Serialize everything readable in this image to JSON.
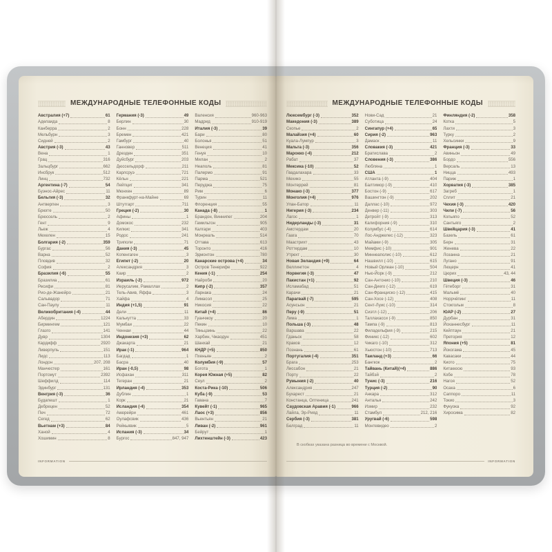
{
  "header": {
    "title": "МЕЖДУНАРОДНЫЕ ТЕЛЕФОННЫЕ КОДЫ"
  },
  "footer": {
    "label": "INFORMATION"
  },
  "right_page_footnote": "В скобках указана разница во времени с Москвой.",
  "colors": {
    "page": "#f3eee0",
    "cover": "#b2b5b7",
    "text": "#6e675e",
    "bold_text": "#494239"
  },
  "left_page": {
    "columns": [
      [
        [
          "Австралия (+7)",
          "61",
          1
        ],
        [
          "Аделаида",
          "8"
        ],
        [
          "Канберра",
          "2"
        ],
        [
          "Мельбурн",
          "3"
        ],
        [
          "Сидней",
          "2"
        ],
        [
          "Австрия (-3)",
          "43",
          1
        ],
        [
          "Вена",
          "1"
        ],
        [
          "Грац",
          "316"
        ],
        [
          "Зальцбург",
          "662"
        ],
        [
          "Инсбрук",
          "512"
        ],
        [
          "Линц",
          "732"
        ],
        [
          "Аргентина (-7)",
          "54",
          1
        ],
        [
          "Буэнос-Айрес",
          "11"
        ],
        [
          "Бельгия (-3)",
          "32",
          1
        ],
        [
          "Антверпен",
          "3"
        ],
        [
          "Брюгге",
          "50"
        ],
        [
          "Брюссель",
          "2"
        ],
        [
          "Гент",
          "9"
        ],
        [
          "Льеж",
          "4"
        ],
        [
          "Мехелен",
          "15"
        ],
        [
          "Болгария (-2)",
          "359",
          1
        ],
        [
          "Бургас",
          "56"
        ],
        [
          "Варна",
          "52"
        ],
        [
          "Пловдив",
          "32"
        ],
        [
          "София",
          "2"
        ],
        [
          "Бразилия (-6)",
          "55",
          1
        ],
        [
          "Бразилиа",
          "61"
        ],
        [
          "Ресифи",
          "81"
        ],
        [
          "Рио-де-Жанейро",
          "21"
        ],
        [
          "Сальвадор",
          "71"
        ],
        [
          "Сан-Паулу",
          "11"
        ],
        [
          "Великобритания (-4)",
          "44",
          1
        ],
        [
          "Абердин",
          "1224"
        ],
        [
          "Бирмингем",
          "121"
        ],
        [
          "Глазго",
          "141"
        ],
        [
          "Дувр",
          "1304"
        ],
        [
          "Кардифф",
          "2920"
        ],
        [
          "Ливерпуль",
          "151"
        ],
        [
          "Лидс",
          "113"
        ],
        [
          "Лондон",
          "207, 208"
        ],
        [
          "Манчестер",
          "161"
        ],
        [
          "Портсмут",
          "2392"
        ],
        [
          "Шеффилд",
          "114"
        ],
        [
          "Эдинбург",
          "131"
        ],
        [
          "Венгрия (-3)",
          "36",
          1
        ],
        [
          "Будапешт",
          "1"
        ],
        [
          "Дебрецен",
          "52"
        ],
        [
          "Печ",
          "72"
        ],
        [
          "Сегед",
          "62"
        ],
        [
          "Вьетнам (+3)",
          "84",
          1
        ],
        [
          "Ханой",
          "4"
        ],
        [
          "Хошимин",
          "8"
        ]
      ],
      [
        [
          "Германия (-3)",
          "49",
          1
        ],
        [
          "Берлин",
          "30"
        ],
        [
          "Бонн",
          "228"
        ],
        [
          "Бремен",
          "421"
        ],
        [
          "Гамбург",
          "40"
        ],
        [
          "Ганновер",
          "511"
        ],
        [
          "Дрезден",
          "351"
        ],
        [
          "Дуйсбург",
          "203"
        ],
        [
          "Дюссельдорф",
          "211"
        ],
        [
          "Карлсруэ",
          "721"
        ],
        [
          "Кёльн",
          "221"
        ],
        [
          "Лейпциг",
          "341"
        ],
        [
          "Мюнхен",
          "89"
        ],
        [
          "Франкфурт-на-Майне",
          "69"
        ],
        [
          "Штутгарт",
          "711"
        ],
        [
          "Греция (-2)",
          "30",
          1
        ],
        [
          "Афины",
          "1"
        ],
        [
          "Домокос",
          "232"
        ],
        [
          "Килкис",
          "341"
        ],
        [
          "Родос",
          "241"
        ],
        [
          "Триполи",
          "71"
        ],
        [
          "Дания (-3)",
          "45",
          1
        ],
        [
          "Копенгаген",
          "3"
        ],
        [
          "Египет (-2)",
          "20",
          1
        ],
        [
          "Александрия",
          "3"
        ],
        [
          "Каир",
          "2"
        ],
        [
          "Израиль (-2)",
          "972",
          1
        ],
        [
          "Иерусалим, Рамаллах",
          "2"
        ],
        [
          "Тель-Авив, Яффа",
          "3"
        ],
        [
          "Хайфа",
          "4"
        ],
        [
          "Индия (+1,5)",
          "91",
          1
        ],
        [
          "Дели",
          "11"
        ],
        [
          "Калькутта",
          "33"
        ],
        [
          "Мумбаи",
          "22"
        ],
        [
          "Ченнаи",
          "44"
        ],
        [
          "Индонезия (+3)",
          "62",
          1
        ],
        [
          "Джакарта",
          "21"
        ],
        [
          "Ирак (-1)",
          "964",
          1
        ],
        [
          "Багдад",
          "1"
        ],
        [
          "Басра",
          "40"
        ],
        [
          "Иран (-0,5)",
          "98",
          1
        ],
        [
          "Исфахан",
          "311"
        ],
        [
          "Тегеран",
          "21"
        ],
        [
          "Ирландия (-4)",
          "353",
          1
        ],
        [
          "Дублин",
          "1"
        ],
        [
          "Корк",
          "21"
        ],
        [
          "Исландия (-4)",
          "354",
          1
        ],
        [
          "Акюрейри",
          "461"
        ],
        [
          "Оулафсвик",
          "436"
        ],
        [
          "Рейкьявик",
          "5"
        ],
        [
          "Испания (-3)",
          "34",
          1
        ],
        [
          "Бургос",
          "847, 947"
        ]
      ],
      [
        [
          "Валенсия",
          "960-963"
        ],
        [
          "Мадрид",
          "910-919"
        ],
        [
          "Италия (-3)",
          "39",
          1
        ],
        [
          "Бари",
          "80"
        ],
        [
          "Болонья",
          "51"
        ],
        [
          "Венеция",
          "41"
        ],
        [
          "Генуя",
          "10"
        ],
        [
          "Милан",
          "2"
        ],
        [
          "Неаполь",
          "81"
        ],
        [
          "Палермо",
          "91"
        ],
        [
          "Парма",
          "521"
        ],
        [
          "Перуджа",
          "75"
        ],
        [
          "Рим",
          "6"
        ],
        [
          "Турин",
          "11"
        ],
        [
          "Флоренция",
          "55"
        ],
        [
          "Канада (-8)",
          "1",
          1
        ],
        [
          "Брандон, Виннипег",
          "204"
        ],
        [
          "Гамильтон",
          "905"
        ],
        [
          "Калгари",
          "403"
        ],
        [
          "Монреаль",
          "514"
        ],
        [
          "Оттава",
          "613"
        ],
        [
          "Торонто",
          "416"
        ],
        [
          "Эдмонтон",
          "780"
        ],
        [
          "Канарские острова (+4)",
          "34",
          1
        ],
        [
          "Остров Тенерифе",
          "922"
        ],
        [
          "Кения (-1)",
          "254",
          1
        ],
        [
          "Найроби",
          "20"
        ],
        [
          "Кипр (-2)",
          "357",
          1
        ],
        [
          "Ларнака",
          "24"
        ],
        [
          "Лимасол",
          "25"
        ],
        [
          "Никосия",
          "22"
        ],
        [
          "Китай (+4)",
          "86",
          1
        ],
        [
          "Гуанчжоу",
          "20"
        ],
        [
          "Пекин",
          "10"
        ],
        [
          "Тяньцзинь",
          "22"
        ],
        [
          "Харбин, Чжаодун",
          "451"
        ],
        [
          "Шанхай",
          "21"
        ],
        [
          "КНДР (+5)",
          "850",
          1
        ],
        [
          "Пхеньян",
          "2"
        ],
        [
          "Колумбия (-9)",
          "57",
          1
        ],
        [
          "Богота",
          "1"
        ],
        [
          "Корея Южная (+5)",
          "82",
          1
        ],
        [
          "Сеул",
          "2"
        ],
        [
          "Коста-Рика (-10)",
          "506",
          1
        ],
        [
          "Куба (-9)",
          "53",
          1
        ],
        [
          "Гавана",
          "7"
        ],
        [
          "Кувейт (-1)",
          "965",
          1
        ],
        [
          "Лаос (+3)",
          "856",
          1
        ],
        [
          "Вьентьян",
          "21"
        ],
        [
          "Ливан (-2)",
          "961",
          1
        ],
        [
          "Бейрут",
          "1"
        ],
        [
          "Лихтенштейн (-3)",
          "423",
          1
        ]
      ]
    ]
  },
  "right_page": {
    "columns": [
      [
        [
          "Люксембург (-3)",
          "352",
          1
        ],
        [
          "Македония (-3)",
          "389",
          1
        ],
        [
          "Скопье",
          "2"
        ],
        [
          "Малайзия (+4)",
          "60",
          1
        ],
        [
          "Куала-Лумпур",
          "3"
        ],
        [
          "Мальта (-3)",
          "356",
          1
        ],
        [
          "Марокко (-4)",
          "212",
          1
        ],
        [
          "Рабат",
          "37"
        ],
        [
          "Мексика (-10)",
          "52",
          1
        ],
        [
          "Гвадалахара",
          "33"
        ],
        [
          "Мехико",
          "55"
        ],
        [
          "Монтеррей",
          "81"
        ],
        [
          "Монако (-3)",
          "377",
          1
        ],
        [
          "Монголия (+4)",
          "976",
          1
        ],
        [
          "Улан-Батор",
          "11"
        ],
        [
          "Нигерия (-3)",
          "234",
          1
        ],
        [
          "Лагос",
          "1"
        ],
        [
          "Нидерланды (-3)",
          "31",
          1
        ],
        [
          "Амстердам",
          "20"
        ],
        [
          "Гаага",
          "70"
        ],
        [
          "Маастрихт",
          "43"
        ],
        [
          "Роттердам",
          "10"
        ],
        [
          "Утрехт",
          "30"
        ],
        [
          "Новая Зеландия (+9)",
          "64",
          1
        ],
        [
          "Веллингтон",
          "4"
        ],
        [
          "Норвегия (-3)",
          "47",
          1
        ],
        [
          "Пакистан (+1)",
          "92",
          1
        ],
        [
          "Исламабад",
          "51"
        ],
        [
          "Карачи",
          "21"
        ],
        [
          "Парагвай (-7)",
          "595",
          1
        ],
        [
          "Асунсьон",
          "21"
        ],
        [
          "Перу (-9)",
          "51",
          1
        ],
        [
          "Лима",
          "1"
        ],
        [
          "Польша (-3)",
          "48",
          1
        ],
        [
          "Варшава",
          "22"
        ],
        [
          "Гданьск",
          "58"
        ],
        [
          "Краков",
          "12"
        ],
        [
          "Познань",
          "61"
        ],
        [
          "Португалия (-4)",
          "351",
          1
        ],
        [
          "Брага",
          "253"
        ],
        [
          "Лиссабон",
          "21"
        ],
        [
          "Порту",
          "22"
        ],
        [
          "Румыния (-2)",
          "40",
          1
        ],
        [
          "Александрия",
          "247"
        ],
        [
          "Бухарест",
          "21"
        ],
        [
          "Констанца, Олтеница",
          "241"
        ],
        [
          "Саудовская Аравия (-1)",
          "966",
          1
        ],
        [
          "Лайла, Эр-Рияд",
          "11"
        ],
        [
          "Сербия (-3)",
          "381",
          1
        ],
        [
          "Белград",
          "11"
        ]
      ],
      [
        [
          "Нови-Сад",
          "21"
        ],
        [
          "Суботица",
          "24"
        ],
        [
          "Сингапур (+4)",
          "65",
          1
        ],
        [
          "Сирия (-2)",
          "963",
          1
        ],
        [
          "Дамаск",
          "11"
        ],
        [
          "Словакия (-3)",
          "421",
          1
        ],
        [
          "Братислава",
          "2"
        ],
        [
          "Словения (-3)",
          "386",
          1
        ],
        [
          "Любляна",
          "1"
        ],
        [
          "США",
          "1",
          1
        ],
        [
          "Атланта (-9)",
          "404"
        ],
        [
          "Балтимор (-9)",
          "410"
        ],
        [
          "Бостон (-9)",
          "617"
        ],
        [
          "Вашингтон (-9)",
          "202"
        ],
        [
          "Даллас (-10)",
          "972"
        ],
        [
          "Денвер (-11)",
          "303"
        ],
        [
          "Детройт (-9)",
          "313"
        ],
        [
          "Калифорния (-9)",
          "310"
        ],
        [
          "Колумбус (-4)",
          "614"
        ],
        [
          "Лос-Анджелес (-12)",
          "323"
        ],
        [
          "Майами (-9)",
          "305"
        ],
        [
          "Мемфис (-10)",
          "901"
        ],
        [
          "Миннеаполис (-10)",
          "612"
        ],
        [
          "Нашвилл (-10)",
          "615"
        ],
        [
          "Новый Орлеан (-10)",
          "504"
        ],
        [
          "Нью-Йорк (-9)",
          "212"
        ],
        [
          "Сан-Антонио (-10)",
          "210"
        ],
        [
          "Сан-Диего (-12)",
          "619"
        ],
        [
          "Сан-Франциско (-12)",
          "415"
        ],
        [
          "Сан-Хосе (-12)",
          "408"
        ],
        [
          "Сент-Луис (-10)",
          "314"
        ],
        [
          "Сиэтл (-12)",
          "206"
        ],
        [
          "Таллахасси (-9)",
          "850"
        ],
        [
          "Тампа (-9)",
          "813"
        ],
        [
          "Филадельфия (-9)",
          "215"
        ],
        [
          "Финикс (-12)",
          "602"
        ],
        [
          "Чикаго (-10)",
          "312"
        ],
        [
          "Хьюстон (-10)",
          "713"
        ],
        [
          "Таиланд (+3)",
          "66",
          1
        ],
        [
          "Бангкок",
          "2"
        ],
        [
          "Тайвань (Китай)(+4)",
          "886",
          1
        ],
        [
          "Тайбэй",
          "2"
        ],
        [
          "Тунис (-3)",
          "216",
          1
        ],
        [
          "Турция (-2)",
          "90",
          1
        ],
        [
          "Анкара",
          "312"
        ],
        [
          "Анталья",
          "242"
        ],
        [
          "Измир",
          "232"
        ],
        [
          "Стамбул",
          "212, 216"
        ],
        [
          "Уругвай (-6)",
          "598",
          1
        ],
        [
          "Монтевидео",
          "2"
        ]
      ],
      [
        [
          "Финляндия (-2)",
          "358",
          1
        ],
        [
          "Котка",
          "5"
        ],
        [
          "Лахти",
          "3"
        ],
        [
          "Турку",
          "2"
        ],
        [
          "Хельсинки",
          "9"
        ],
        [
          "Франция (-3)",
          "33",
          1
        ],
        [
          "Авиньон",
          "49"
        ],
        [
          "Бордо",
          "556"
        ],
        [
          "Версаль",
          "13"
        ],
        [
          "Ницца",
          "493"
        ],
        [
          "Париж",
          "1"
        ],
        [
          "Хорватия (-3)",
          "385",
          1
        ],
        [
          "Загреб",
          "1"
        ],
        [
          "Сплит",
          "21"
        ],
        [
          "Чехия (-3)",
          "420",
          1
        ],
        [
          "Чили (-7)",
          "56",
          1
        ],
        [
          "Копьяпо",
          "52"
        ],
        [
          "Сантьяго",
          "2"
        ],
        [
          "Швейцария (-3)",
          "41",
          1
        ],
        [
          "Базель",
          "61"
        ],
        [
          "Берн",
          "31"
        ],
        [
          "Женева",
          "22"
        ],
        [
          "Лозанна",
          "21"
        ],
        [
          "Лугано",
          "91"
        ],
        [
          "Люцерн",
          "41"
        ],
        [
          "Цюрих",
          "43, 44"
        ],
        [
          "Швеция (-3)",
          "46",
          1
        ],
        [
          "Гётеборг",
          "31"
        ],
        [
          "Мальмё",
          "40"
        ],
        [
          "Норрчёпинг",
          "11"
        ],
        [
          "Стокгольм",
          "8"
        ],
        [
          "ЮАР (-2)",
          "27",
          1
        ],
        [
          "Дурбан",
          "31"
        ],
        [
          "Йоханнесбург",
          "11"
        ],
        [
          "Кейптаун",
          "21"
        ],
        [
          "Претория",
          "12"
        ],
        [
          "Япония (+5)",
          "81",
          1
        ],
        [
          "Йокогама",
          "45"
        ],
        [
          "Кавасаки",
          "44"
        ],
        [
          "Киото",
          "75"
        ],
        [
          "Китакюсю",
          "93"
        ],
        [
          "Кобе",
          "78"
        ],
        [
          "Нагоя",
          "52"
        ],
        [
          "Осака",
          "6"
        ],
        [
          "Саппоро",
          "11"
        ],
        [
          "Токио",
          "3"
        ],
        [
          "Фукуока",
          "92"
        ],
        [
          "Хиросима",
          "82"
        ]
      ]
    ]
  }
}
